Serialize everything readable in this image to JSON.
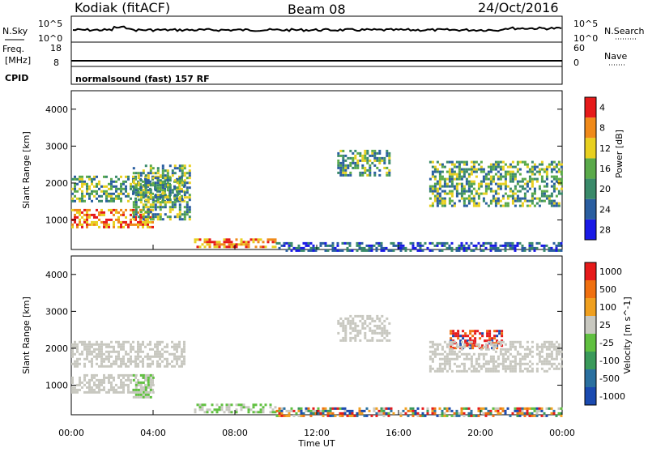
{
  "header": {
    "station": "Kodiak (fitACF)",
    "beam": "Beam 08",
    "date": "24/Oct/2016"
  },
  "status_panel": {
    "nsky_label": "N.Sky",
    "nsky_ticks": [
      "10^5",
      "10^0"
    ],
    "nsearch_label": "N.Search",
    "nsearch_ticks": [
      "10^5",
      "10^0"
    ],
    "freq_label": "Freq.",
    "freq_unit": "[MHz]",
    "freq_ticks": [
      "18",
      "8"
    ],
    "nave_label": "Nave",
    "nave_ticks": [
      "60",
      "0"
    ],
    "cpid_label": "CPID",
    "cpid_text": "normalsound (fast) 157 RF"
  },
  "x_axis": {
    "label": "Time UT",
    "ticks": [
      "00:00",
      "04:00",
      "08:00",
      "12:00",
      "16:00",
      "20:00",
      "00:00"
    ]
  },
  "chart_data": [
    {
      "type": "heatmap",
      "panel": "power",
      "ylabel": "Slant Range [km]",
      "yticks": [
        "1000",
        "2000",
        "3000",
        "4000"
      ],
      "ylim": [
        200,
        4500
      ],
      "xlim": [
        0,
        24
      ],
      "colorbar": {
        "title": "Power [dB]",
        "ticks": [
          "4",
          "8",
          "12",
          "16",
          "20",
          "24",
          "28"
        ],
        "colors": [
          "#1a1ae6",
          "#2a5ea0",
          "#3a8a6a",
          "#5aaa4a",
          "#e8d020",
          "#f08a1a",
          "#e61a1a"
        ]
      },
      "regions": [
        {
          "t": [
            0.0,
            4.0
          ],
          "r": [
            800,
            1300
          ],
          "level": "high"
        },
        {
          "t": [
            0.0,
            5.5
          ],
          "r": [
            1500,
            2200
          ],
          "level": "mid"
        },
        {
          "t": [
            3.0,
            5.8
          ],
          "r": [
            1000,
            2500
          ],
          "level": "mid"
        },
        {
          "t": [
            6.0,
            10.0
          ],
          "r": [
            300,
            500
          ],
          "level": "high"
        },
        {
          "t": [
            10.0,
            24.0
          ],
          "r": [
            200,
            400
          ],
          "level": "low"
        },
        {
          "t": [
            13.0,
            15.5
          ],
          "r": [
            2200,
            2900
          ],
          "level": "mid"
        },
        {
          "t": [
            17.5,
            24.0
          ],
          "r": [
            1400,
            2600
          ],
          "level": "mid"
        }
      ]
    },
    {
      "type": "heatmap",
      "panel": "velocity",
      "ylabel": "Slant Range [km]",
      "yticks": [
        "1000",
        "2000",
        "3000",
        "4000"
      ],
      "ylim": [
        200,
        4500
      ],
      "xlim": [
        0,
        24
      ],
      "colorbar": {
        "title": "Velocity [m s^-1]",
        "ticks": [
          "1000",
          "500",
          "100",
          "25",
          "-25",
          "-100",
          "-500",
          "-1000"
        ],
        "colors": [
          "#1a4ab0",
          "#2a70a0",
          "#3a9a5a",
          "#60c040",
          "#c8c8c0",
          "#f0a020",
          "#f07010",
          "#e61a1a"
        ]
      },
      "regions": [
        {
          "t": [
            0.0,
            4.0
          ],
          "r": [
            800,
            1300
          ],
          "level": "neutral"
        },
        {
          "t": [
            0.0,
            5.5
          ],
          "r": [
            1500,
            2200
          ],
          "level": "neutral"
        },
        {
          "t": [
            3.0,
            4.0
          ],
          "r": [
            700,
            1300
          ],
          "level": "toward"
        },
        {
          "t": [
            6.0,
            10.0
          ],
          "r": [
            300,
            500
          ],
          "level": "toward"
        },
        {
          "t": [
            10.0,
            24.0
          ],
          "r": [
            200,
            400
          ],
          "level": "mixed"
        },
        {
          "t": [
            13.0,
            15.5
          ],
          "r": [
            2200,
            2900
          ],
          "level": "neutral"
        },
        {
          "t": [
            18.5,
            21.0
          ],
          "r": [
            2000,
            2500
          ],
          "level": "away"
        },
        {
          "t": [
            17.5,
            24.0
          ],
          "r": [
            1400,
            2200
          ],
          "level": "neutral"
        }
      ]
    }
  ]
}
